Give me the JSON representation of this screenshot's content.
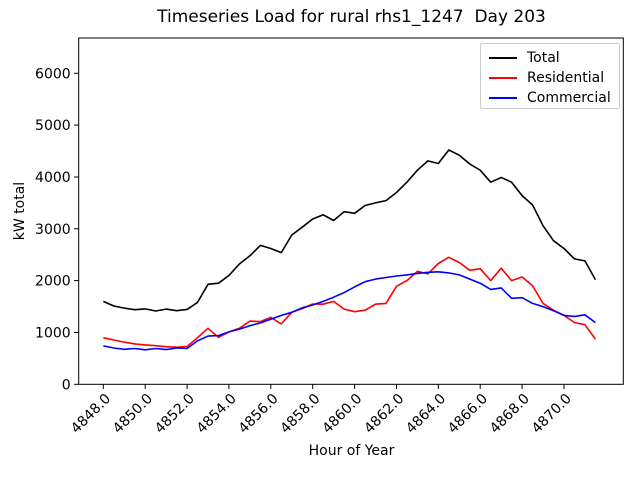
{
  "figure": {
    "title": "Timeseries Load for rural rhs1_1247  Day 203"
  },
  "chart_data": {
    "type": "line",
    "title": "Timeseries Load for rural rhs1_1247  Day 203",
    "xlabel": "Hour of Year",
    "ylabel": "kW total",
    "grid": false,
    "legend_position": "upper right",
    "legend_border_color": "#cccccc",
    "axes_color": "#000000",
    "xlim": [
      4846.8,
      4872.8
    ],
    "ylim": [
      0,
      6680
    ],
    "xticks": [
      4848,
      4850,
      4852,
      4854,
      4856,
      4858,
      4860,
      4862,
      4864,
      4866,
      4868,
      4870
    ],
    "xtick_labels": [
      "4848.0",
      "4850.0",
      "4852.0",
      "4854.0",
      "4856.0",
      "4858.0",
      "4860.0",
      "4862.0",
      "4864.0",
      "4866.0",
      "4868.0",
      "4870.0"
    ],
    "xtick_rotation": 45,
    "yticks": [
      0,
      1000,
      2000,
      3000,
      4000,
      5000,
      6000
    ],
    "ytick_labels": [
      "0",
      "1000",
      "2000",
      "3000",
      "4000",
      "5000",
      "6000"
    ],
    "x": [
      4848.0,
      4848.5,
      4849.0,
      4849.5,
      4850.0,
      4850.5,
      4851.0,
      4851.5,
      4852.0,
      4852.5,
      4853.0,
      4853.5,
      4854.0,
      4854.5,
      4855.0,
      4855.5,
      4856.0,
      4856.5,
      4857.0,
      4857.5,
      4858.0,
      4858.5,
      4859.0,
      4859.5,
      4860.0,
      4860.5,
      4861.0,
      4861.5,
      4862.0,
      4862.5,
      4863.0,
      4863.5,
      4864.0,
      4864.5,
      4865.0,
      4865.5,
      4866.0,
      4866.5,
      4867.0,
      4867.5,
      4868.0,
      4868.5,
      4869.0,
      4869.5,
      4870.0,
      4870.5,
      4871.0,
      4871.5
    ],
    "series": [
      {
        "name": "Total",
        "color": "#000000",
        "values": [
          1600,
          1510,
          1470,
          1440,
          1455,
          1415,
          1450,
          1420,
          1445,
          1580,
          1930,
          1950,
          2100,
          2320,
          2480,
          2680,
          2620,
          2540,
          2880,
          3030,
          3190,
          3270,
          3160,
          3330,
          3300,
          3450,
          3500,
          3545,
          3700,
          3900,
          4130,
          4310,
          4260,
          4520,
          4420,
          4250,
          4130,
          3900,
          3990,
          3900,
          3640,
          3460,
          3060,
          2770,
          2620,
          2420,
          2380,
          2020
        ]
      },
      {
        "name": "Residential",
        "color": "#ff0000",
        "values": [
          900,
          855,
          815,
          780,
          760,
          745,
          725,
          715,
          730,
          900,
          1080,
          905,
          1010,
          1080,
          1220,
          1210,
          1290,
          1165,
          1390,
          1460,
          1550,
          1545,
          1600,
          1450,
          1400,
          1430,
          1545,
          1560,
          1890,
          2000,
          2180,
          2130,
          2330,
          2450,
          2350,
          2200,
          2230,
          2000,
          2240,
          2000,
          2070,
          1900,
          1560,
          1430,
          1330,
          1190,
          1150,
          870
        ]
      },
      {
        "name": "Commercial",
        "color": "#0000ff",
        "values": [
          740,
          700,
          675,
          690,
          665,
          690,
          670,
          700,
          690,
          840,
          930,
          940,
          1010,
          1065,
          1130,
          1185,
          1255,
          1330,
          1390,
          1475,
          1530,
          1600,
          1680,
          1770,
          1880,
          1980,
          2030,
          2060,
          2090,
          2110,
          2140,
          2160,
          2170,
          2150,
          2110,
          2030,
          1950,
          1830,
          1860,
          1660,
          1670,
          1560,
          1500,
          1420,
          1330,
          1310,
          1340,
          1190
        ]
      }
    ]
  }
}
